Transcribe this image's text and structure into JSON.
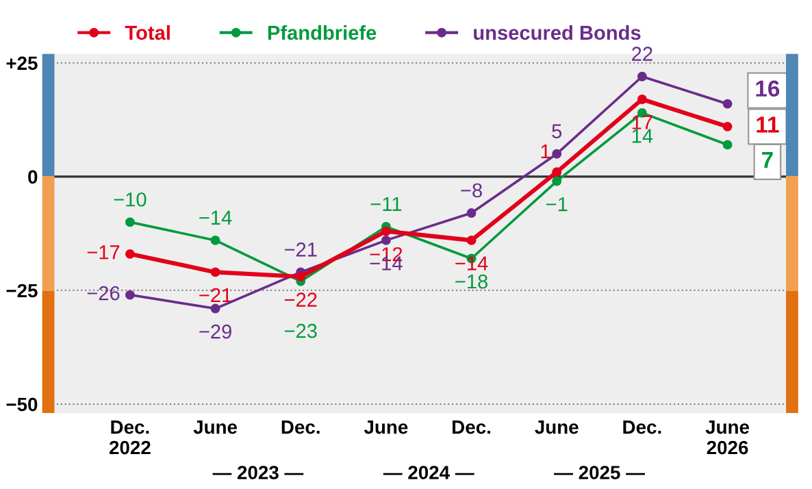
{
  "chart_data": {
    "type": "line",
    "categories": [
      "Dec.\n2022",
      "June",
      "Dec.",
      "June",
      "Dec.",
      "June",
      "Dec.",
      "June\n2026"
    ],
    "series": [
      {
        "name": "Total",
        "color": "#e2001a",
        "values": [
          -17,
          -21,
          -22,
          -12,
          -14,
          1,
          17,
          11
        ]
      },
      {
        "name": "Pfandbriefe",
        "color": "#009a3e",
        "values": [
          -10,
          -14,
          -23,
          -11,
          -18,
          -1,
          14,
          7
        ]
      },
      {
        "name": "unsecured Bonds",
        "color": "#6a2c8a",
        "values": [
          -26,
          -29,
          -21,
          -14,
          -8,
          5,
          22,
          16
        ]
      }
    ],
    "ylim": [
      -52,
      27
    ],
    "yticks": [
      {
        "value": 25,
        "label": "+25"
      },
      0,
      -25,
      -50
    ],
    "ref_lines": [
      {
        "axis": "y",
        "value": 0,
        "color": "#333333"
      }
    ],
    "annotations": [
      "— 2023 —",
      "— 2024 —",
      "— 2025 —"
    ],
    "data_labels": true,
    "grid": "y",
    "legend": "top",
    "marker": "circle",
    "line_style": "solid"
  }
}
